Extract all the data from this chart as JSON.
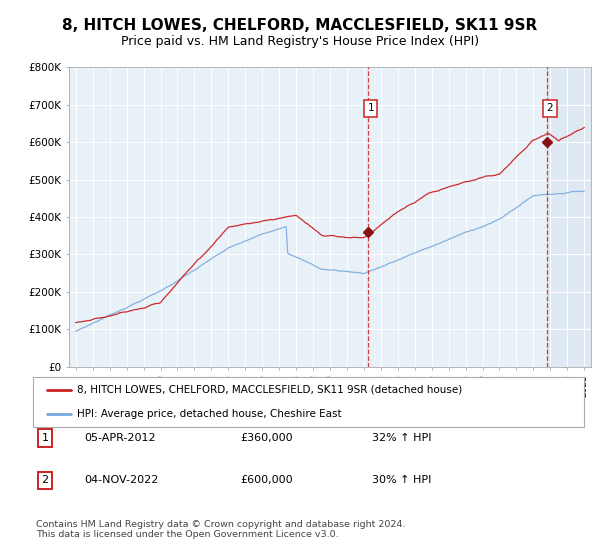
{
  "title": "8, HITCH LOWES, CHELFORD, MACCLESFIELD, SK11 9SR",
  "subtitle": "Price paid vs. HM Land Registry's House Price Index (HPI)",
  "legend_line1": "8, HITCH LOWES, CHELFORD, MACCLESFIELD, SK11 9SR (detached house)",
  "legend_line2": "HPI: Average price, detached house, Cheshire East",
  "transaction1_date": "05-APR-2012",
  "transaction1_price": 360000,
  "transaction1_hpi": "32% ↑ HPI",
  "transaction2_date": "04-NOV-2022",
  "transaction2_price": 600000,
  "transaction2_hpi": "30% ↑ HPI",
  "ylim": [
    0,
    800000
  ],
  "yticks": [
    0,
    100000,
    200000,
    300000,
    400000,
    500000,
    600000,
    700000,
    800000
  ],
  "plot_bg": "#e8f0f8",
  "red_color": "#cc2222",
  "blue_color": "#7aaadd",
  "dashed_color": "#cc2222",
  "marker_color": "#881111",
  "title_fontsize": 11,
  "subtitle_fontsize": 9,
  "footer_text": "Contains HM Land Registry data © Crown copyright and database right 2024.\nThis data is licensed under the Open Government Licence v3.0.",
  "transaction1_x": 2012.25,
  "transaction2_x": 2022.83,
  "xlim_left": 1994.6,
  "xlim_right": 2025.4
}
